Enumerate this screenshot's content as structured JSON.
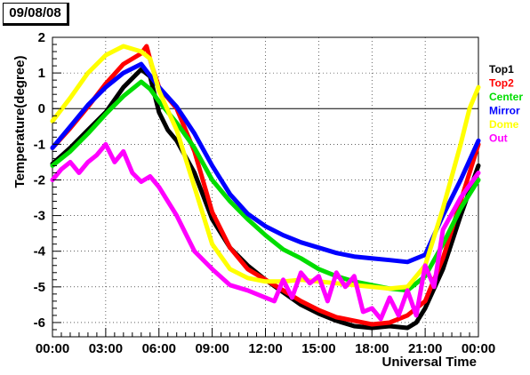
{
  "date_label": "09/08/08",
  "chart_data": {
    "type": "line",
    "xlabel": "Universal Time",
    "ylabel": "Temperature(degree)",
    "xlim": [
      0,
      24
    ],
    "ylim": [
      -6.4,
      2.0
    ],
    "x_tick_labels": [
      "00:00",
      "03:00",
      "06:00",
      "09:00",
      "12:00",
      "15:00",
      "18:00",
      "21:00",
      "00:00"
    ],
    "x_ticks": [
      0,
      3,
      6,
      9,
      12,
      15,
      18,
      21,
      24
    ],
    "y_ticks": [
      -6,
      -5,
      -4,
      -3,
      -2,
      -1,
      0,
      1,
      2
    ],
    "grid": true,
    "legend_position": "right",
    "series": [
      {
        "name": "Top1",
        "color": "#000000",
        "x": [
          0,
          1,
          2,
          3,
          4,
          5,
          5.5,
          6,
          6.5,
          7,
          8,
          9,
          10,
          11,
          12,
          13,
          14,
          15,
          16,
          17,
          18,
          19,
          20,
          20.5,
          21,
          22,
          23,
          24
        ],
        "y": [
          -1.55,
          -1.1,
          -0.6,
          -0.1,
          0.6,
          1.1,
          0.9,
          -0.1,
          -0.6,
          -0.9,
          -1.8,
          -3.1,
          -3.9,
          -4.4,
          -4.8,
          -5.15,
          -5.5,
          -5.75,
          -5.95,
          -6.1,
          -6.15,
          -6.1,
          -6.15,
          -6.0,
          -5.6,
          -4.5,
          -3.0,
          -1.6
        ]
      },
      {
        "name": "Top2",
        "color": "#ff0000",
        "x": [
          0,
          1,
          2,
          3,
          4,
          5,
          5.3,
          5.6,
          6,
          7,
          8,
          9,
          10,
          11,
          12,
          13,
          14,
          15,
          16,
          17,
          18,
          19,
          20,
          21,
          22,
          23,
          24
        ],
        "y": [
          -1.1,
          -0.55,
          0.05,
          0.7,
          1.25,
          1.55,
          1.75,
          1.2,
          0.6,
          0.0,
          -1.2,
          -2.9,
          -3.9,
          -4.5,
          -4.8,
          -5.1,
          -5.4,
          -5.65,
          -5.85,
          -5.95,
          -6.05,
          -6.0,
          -5.8,
          -5.4,
          -4.2,
          -2.6,
          -1.0
        ]
      },
      {
        "name": "Center",
        "color": "#00dd00",
        "x": [
          0,
          1,
          2,
          3,
          4,
          5,
          5.5,
          6,
          7,
          8,
          9,
          10,
          11,
          12,
          13,
          14,
          15,
          16,
          17,
          18,
          19,
          20,
          21,
          22,
          23,
          24
        ],
        "y": [
          -1.6,
          -1.2,
          -0.7,
          -0.15,
          0.35,
          0.75,
          0.55,
          0.2,
          -0.4,
          -1.1,
          -2.0,
          -2.6,
          -3.1,
          -3.55,
          -3.95,
          -4.2,
          -4.5,
          -4.7,
          -4.85,
          -4.95,
          -5.05,
          -5.1,
          -4.7,
          -3.8,
          -2.8,
          -2.0
        ]
      },
      {
        "name": "Mirror",
        "color": "#0000ff",
        "x": [
          0,
          1,
          2,
          3,
          4,
          5,
          6,
          7,
          8,
          9,
          10,
          11,
          12,
          13,
          14,
          15,
          16,
          17,
          18,
          19,
          20,
          21,
          22,
          23,
          24
        ],
        "y": [
          -1.1,
          -0.5,
          0.1,
          0.6,
          1.0,
          1.25,
          0.6,
          0.05,
          -0.7,
          -1.6,
          -2.4,
          -2.95,
          -3.3,
          -3.55,
          -3.75,
          -3.9,
          -4.05,
          -4.15,
          -4.2,
          -4.25,
          -4.3,
          -4.1,
          -3.0,
          -2.0,
          -0.9
        ]
      },
      {
        "name": "Dome",
        "color": "#ffff00",
        "x": [
          0,
          1,
          2,
          3,
          4,
          5,
          5.5,
          6,
          7,
          8,
          9,
          10,
          11,
          12,
          13,
          14,
          15,
          16,
          17,
          18,
          19,
          20,
          21,
          22,
          23,
          23.5,
          24
        ],
        "y": [
          -0.35,
          0.3,
          1.0,
          1.5,
          1.75,
          1.6,
          1.4,
          0.5,
          -0.6,
          -2.2,
          -3.8,
          -4.5,
          -4.75,
          -4.85,
          -4.85,
          -4.8,
          -4.85,
          -4.9,
          -4.95,
          -5.0,
          -5.05,
          -5.0,
          -4.4,
          -2.8,
          -1.0,
          0.0,
          0.6
        ]
      },
      {
        "name": "Out",
        "color": "#ff00ff",
        "x": [
          0,
          0.5,
          1,
          1.5,
          2,
          2.5,
          3,
          3.5,
          4,
          4.5,
          5,
          5.5,
          6,
          6.5,
          7,
          7.5,
          8,
          9,
          10,
          11,
          12,
          12.5,
          13,
          13.5,
          14,
          14.5,
          15,
          15.5,
          16,
          16.5,
          17,
          17.5,
          18,
          18.5,
          19,
          19.5,
          20,
          20.5,
          21,
          21.5,
          22,
          23,
          24
        ],
        "y": [
          -2.0,
          -1.7,
          -1.5,
          -1.8,
          -1.5,
          -1.3,
          -1.0,
          -1.5,
          -1.2,
          -1.8,
          -2.05,
          -1.9,
          -2.2,
          -2.6,
          -3.0,
          -3.5,
          -4.0,
          -4.5,
          -4.95,
          -5.1,
          -5.3,
          -5.4,
          -4.8,
          -5.3,
          -4.6,
          -4.9,
          -4.7,
          -5.4,
          -4.6,
          -5.0,
          -4.7,
          -5.7,
          -5.6,
          -5.9,
          -5.3,
          -5.8,
          -5.1,
          -5.8,
          -4.4,
          -5.0,
          -3.4,
          -2.5,
          -1.8
        ]
      }
    ]
  }
}
